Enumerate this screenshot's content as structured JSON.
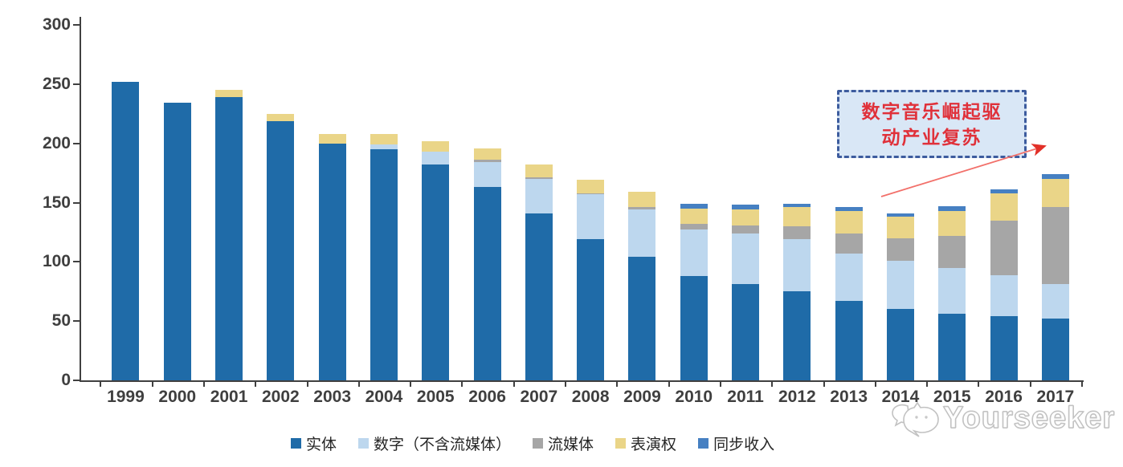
{
  "chart_data": {
    "type": "bar",
    "stacked": true,
    "title": "",
    "xlabel": "",
    "ylabel": "",
    "ylim": [
      0,
      300
    ],
    "yticks": [
      0,
      50,
      100,
      150,
      200,
      250,
      300
    ],
    "grid": false,
    "legend_position": "bottom",
    "categories": [
      "1999",
      "2000",
      "2001",
      "2002",
      "2003",
      "2004",
      "2005",
      "2006",
      "2007",
      "2008",
      "2009",
      "2010",
      "2011",
      "2012",
      "2013",
      "2014",
      "2015",
      "2016",
      "2017"
    ],
    "series": [
      {
        "name": "实体",
        "color": "#1f6ba8",
        "values": [
          252,
          234,
          239,
          219,
          200,
          195,
          182,
          163,
          141,
          119,
          104,
          88,
          81,
          75,
          67,
          60,
          56,
          54,
          52
        ]
      },
      {
        "name": "数字（不含流媒体）",
        "color": "#bdd7ee",
        "values": [
          0,
          0,
          0,
          0,
          0,
          4,
          11,
          21,
          29,
          38,
          40,
          39,
          43,
          44,
          40,
          41,
          39,
          35,
          29
        ]
      },
      {
        "name": "流媒体",
        "color": "#a6a6a6",
        "values": [
          0,
          0,
          0,
          0,
          0,
          0,
          0,
          2,
          1,
          1,
          2,
          5,
          7,
          11,
          17,
          19,
          27,
          46,
          65
        ]
      },
      {
        "name": "表演权",
        "color": "#eAd588",
        "values": [
          0,
          0,
          6,
          6,
          8,
          9,
          9,
          10,
          11,
          11,
          13,
          13,
          13,
          16,
          19,
          18,
          21,
          23,
          24
        ]
      },
      {
        "name": "同步收入",
        "color": "#4680c2",
        "values": [
          0,
          0,
          0,
          0,
          0,
          0,
          0,
          0,
          0,
          0,
          0,
          4,
          4,
          3,
          3,
          3,
          4,
          3,
          4
        ]
      }
    ],
    "totals": [
      252,
      234,
      245,
      225,
      208,
      208,
      202,
      196,
      182,
      169,
      159,
      149,
      148,
      149,
      146,
      141,
      147,
      161,
      173
    ]
  },
  "annotation": {
    "line1": "数字音乐崛起驱",
    "line2": "动产业复苏",
    "text_color": "#e0313a",
    "box_fill": "#d9e7f6",
    "box_border": "#3d5c9e",
    "arrow_color": "#e23028"
  },
  "axis": {
    "color": "#404040",
    "label_color": "#3f3f3f"
  },
  "watermark": {
    "text": "Yourseeker",
    "color": "#c2c2c2"
  }
}
